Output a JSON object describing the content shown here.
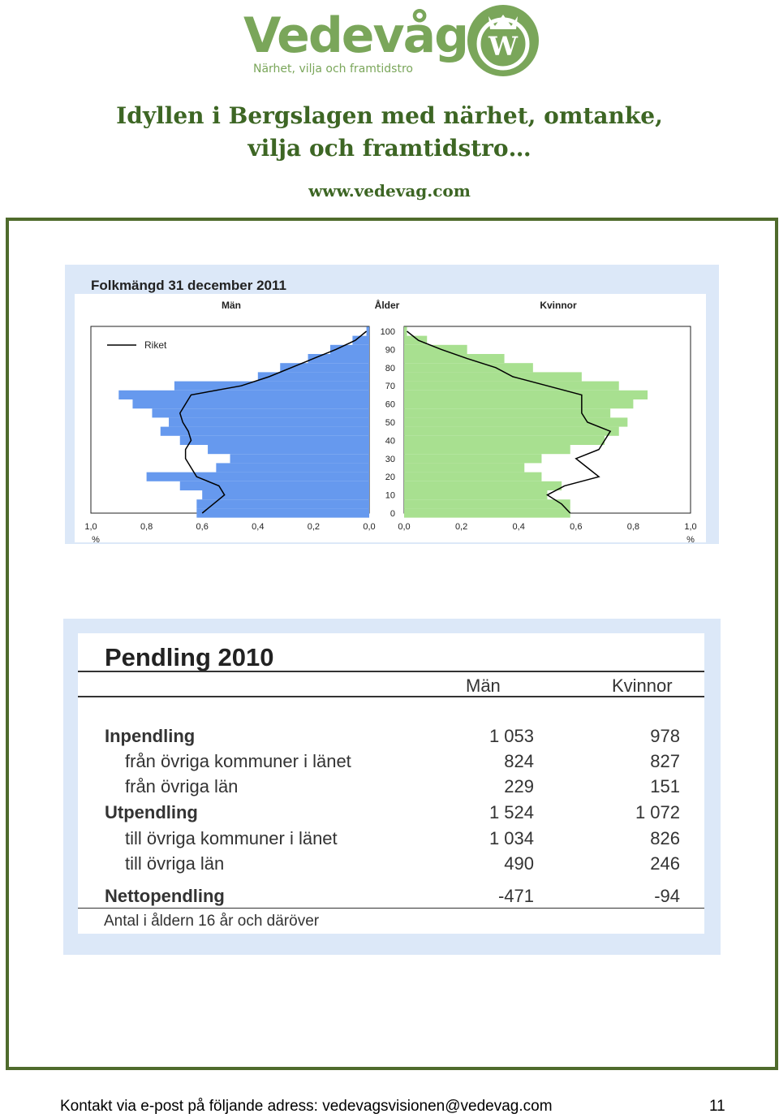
{
  "header": {
    "brand": "Vedevåg",
    "tagline": "Närhet, vilja och framtidstro",
    "headline_line1": "Idyllen i Bergslagen med närhet, omtanke,",
    "headline_line2": "vilja och framtidstro…",
    "url": "www.vedevag.com"
  },
  "chart_data": {
    "type": "bar",
    "title": "Folkmängd 31 december 2011",
    "left_label": "Män",
    "center_label": "Ålder",
    "right_label": "Kvinnor",
    "legend_label": "Riket",
    "legend_position": "top-left",
    "age_ticks": [
      "100",
      "90",
      "80",
      "70",
      "60",
      "50",
      "40",
      "30",
      "20",
      "10",
      "0"
    ],
    "pct_ticks_left": [
      "1,0",
      "0,8",
      "0,6",
      "0,4",
      "0,2",
      "0,0"
    ],
    "pct_ticks_right": [
      "0,0",
      "0,2",
      "0,4",
      "0,6",
      "0,8",
      "1,0"
    ],
    "unit": "%",
    "xlim": [
      0,
      1.0
    ],
    "ages": [
      0,
      5,
      10,
      15,
      20,
      25,
      30,
      35,
      40,
      45,
      50,
      55,
      60,
      65,
      70,
      75,
      80,
      85,
      90,
      95,
      100
    ],
    "series": [
      {
        "name": "Män",
        "color": "#6699ee",
        "values": [
          0.62,
          0.62,
          0.6,
          0.68,
          0.8,
          0.55,
          0.5,
          0.58,
          0.68,
          0.75,
          0.72,
          0.78,
          0.85,
          0.9,
          0.7,
          0.4,
          0.32,
          0.22,
          0.14,
          0.06,
          0.01
        ]
      },
      {
        "name": "Kvinnor",
        "color": "#a8e090",
        "values": [
          0.58,
          0.58,
          0.5,
          0.55,
          0.48,
          0.42,
          0.48,
          0.58,
          0.7,
          0.75,
          0.78,
          0.72,
          0.8,
          0.85,
          0.75,
          0.62,
          0.45,
          0.35,
          0.22,
          0.08,
          0.01
        ]
      },
      {
        "name": "Riket",
        "color": "#000000",
        "men": [
          0.6,
          0.56,
          0.52,
          0.54,
          0.62,
          0.64,
          0.66,
          0.66,
          0.64,
          0.65,
          0.67,
          0.68,
          0.66,
          0.64,
          0.46,
          0.36,
          0.28,
          0.2,
          0.12,
          0.05,
          0.01
        ],
        "women": [
          0.58,
          0.55,
          0.5,
          0.56,
          0.68,
          0.64,
          0.6,
          0.68,
          0.7,
          0.72,
          0.64,
          0.62,
          0.62,
          0.62,
          0.5,
          0.38,
          0.32,
          0.22,
          0.13,
          0.05,
          0.01
        ]
      }
    ]
  },
  "table": {
    "title": "Pendling 2010",
    "col1": "Män",
    "col2": "Kvinnor",
    "rows": [
      {
        "label": "Inpendling",
        "men": "1 053",
        "women": "978"
      },
      {
        "label": "från övriga kommuner i länet",
        "men": "824",
        "women": "827"
      },
      {
        "label": "från övriga län",
        "men": "229",
        "women": "151"
      },
      {
        "label": "Utpendling",
        "men": "1 524",
        "women": "1 072"
      },
      {
        "label": "till övriga kommuner i länet",
        "men": "1 034",
        "women": "826"
      },
      {
        "label": "till övriga län",
        "men": "490",
        "women": "246"
      },
      {
        "label": "Nettopendling",
        "men": "-471",
        "women": "-94"
      }
    ],
    "note": "Antal i åldern 16 år och däröver"
  },
  "footer": {
    "contact": "Kontakt via e-post på följande adress: vedevagsvisionen@vedevag.com",
    "page": "11"
  },
  "colors": {
    "brand_green": "#7aa65a",
    "headline_green": "#3d6624",
    "frame": "#4f6b2c",
    "men": "#6699ee",
    "women": "#a8e090",
    "panel": "#dce8f8"
  }
}
